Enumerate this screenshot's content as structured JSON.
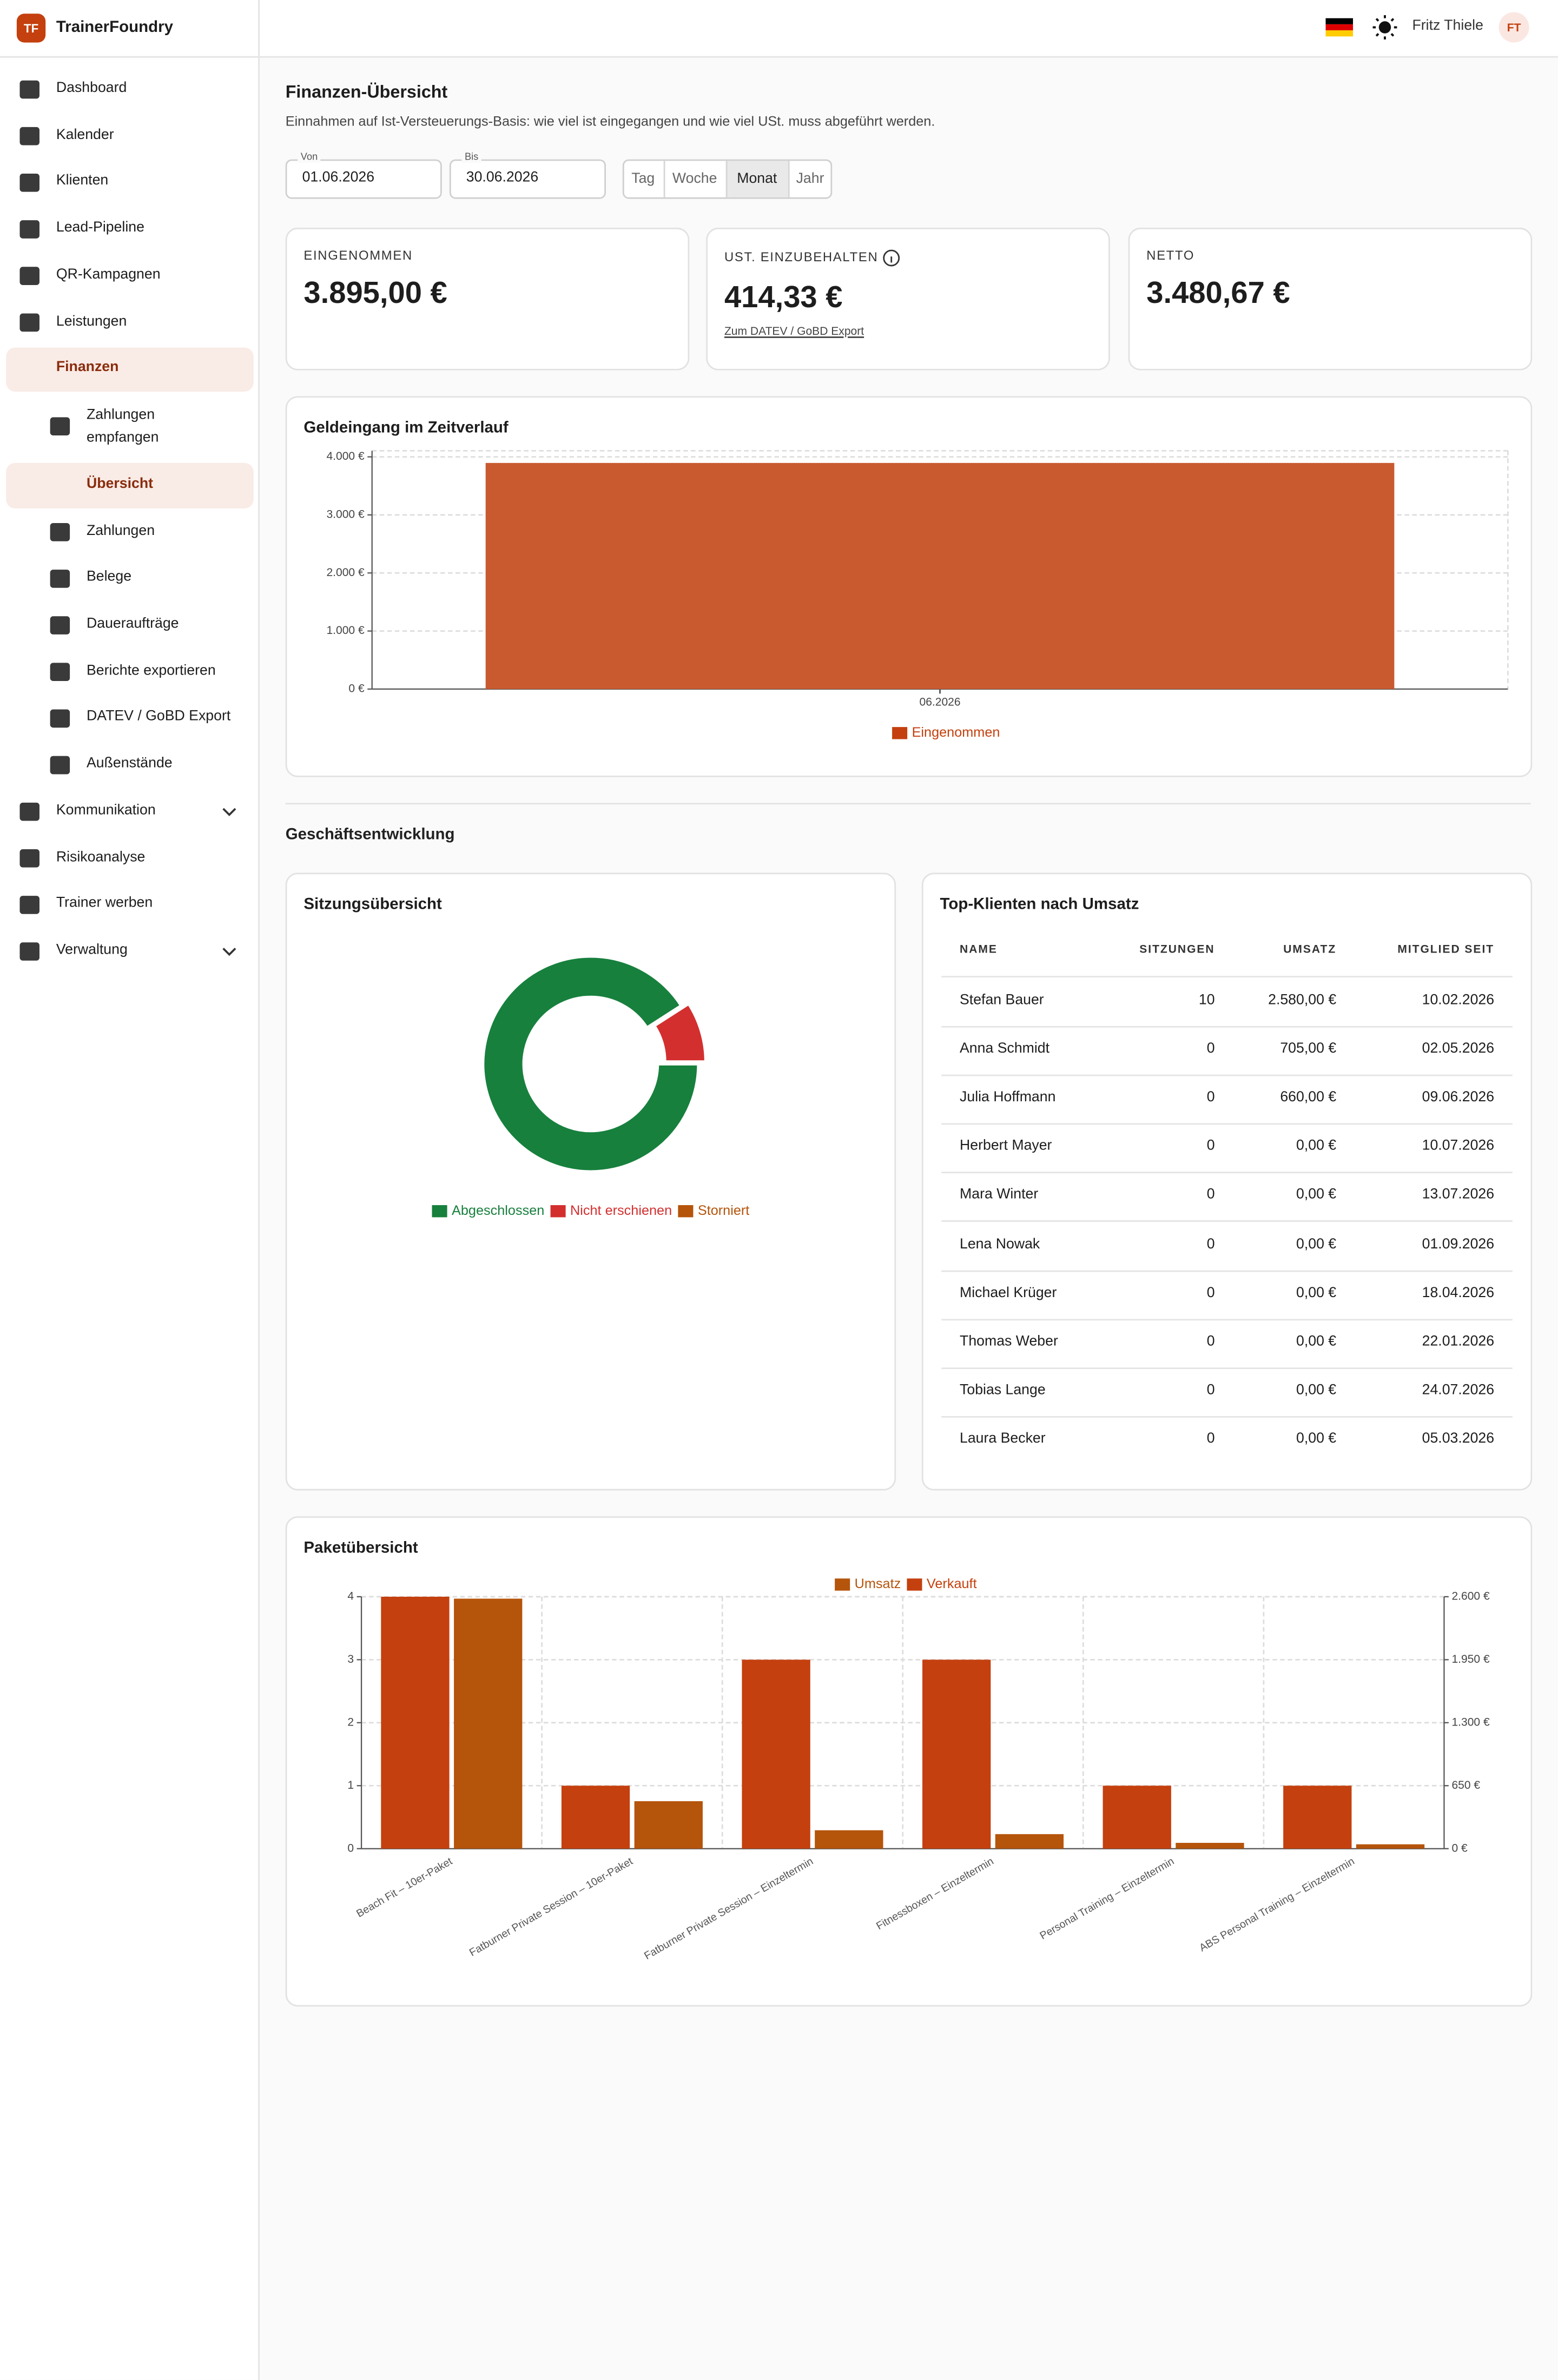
{
  "app": {
    "logo": "TF",
    "name": "TrainerFoundry",
    "user": "Fritz Thiele",
    "initials": "FT"
  },
  "nav": [
    {
      "label": "Dashboard"
    },
    {
      "label": "Kalender"
    },
    {
      "label": "Klienten"
    },
    {
      "label": "Lead-Pipeline"
    },
    {
      "label": "QR-Kampagnen"
    },
    {
      "label": "Leistungen"
    },
    {
      "label": "Finanzen",
      "active": true,
      "children": [
        {
          "label": "Zahlungen empfangen"
        },
        {
          "label": "Übersicht",
          "active": true
        },
        {
          "label": "Zahlungen"
        },
        {
          "label": "Belege"
        },
        {
          "label": "Daueraufträge"
        },
        {
          "label": "Berichte exportieren"
        },
        {
          "label": "DATEV / GoBD Export"
        },
        {
          "label": "Außenstände"
        }
      ]
    },
    {
      "label": "Kommunikation",
      "collapsible": true
    },
    {
      "label": "Risikoanalyse"
    },
    {
      "label": "Trainer werben"
    },
    {
      "label": "Verwaltung",
      "collapsible": true
    }
  ],
  "page": {
    "title": "Finanzen-Übersicht",
    "subtitle": "Einnahmen auf Ist-Versteuerungs-Basis: wie viel ist eingegangen und wie viel USt. muss abgeführt werden.",
    "from_label": "Von",
    "from": "01.06.2026",
    "to_label": "Bis",
    "to": "30.06.2026",
    "periods": [
      "Tag",
      "Woche",
      "Monat",
      "Jahr"
    ],
    "active_period": 2,
    "section": "Geschäftsentwicklung"
  },
  "kpis": [
    {
      "label": "EINGENOMMEN",
      "value": "3.895,00 €"
    },
    {
      "label": "UST. EINZUBEHALTEN",
      "value": "414,33 €",
      "link": "Zum DATEV / GoBD Export"
    },
    {
      "label": "NETTO",
      "value": "3.480,67 €"
    }
  ],
  "table": {
    "title": "Top-Klienten nach Umsatz",
    "columns": [
      "NAME",
      "SITZUNGEN",
      "UMSATZ",
      "MITGLIED SEIT"
    ],
    "rows": [
      [
        "Stefan Bauer",
        "10",
        "2.580,00 €",
        "10.02.2026"
      ],
      [
        "Anna Schmidt",
        "0",
        "705,00 €",
        "02.05.2026"
      ],
      [
        "Julia Hoffmann",
        "0",
        "660,00 €",
        "09.06.2026"
      ],
      [
        "Herbert Mayer",
        "0",
        "0,00 €",
        "10.07.2026"
      ],
      [
        "Mara Winter",
        "0",
        "0,00 €",
        "13.07.2026"
      ],
      [
        "Lena Nowak",
        "0",
        "0,00 €",
        "01.09.2026"
      ],
      [
        "Michael Krüger",
        "0",
        "0,00 €",
        "18.04.2026"
      ],
      [
        "Thomas Weber",
        "0",
        "0,00 €",
        "22.01.2026"
      ],
      [
        "Tobias Lange",
        "0",
        "0,00 €",
        "24.07.2026"
      ],
      [
        "Laura Becker",
        "0",
        "0,00 €",
        "05.03.2026"
      ]
    ]
  },
  "chart_data": [
    {
      "type": "bar",
      "title": "Geldeingang im Zeitverlauf",
      "categories": [
        "06.2026"
      ],
      "series": [
        {
          "name": "Eingenommen",
          "color": "#c95a30",
          "legend_color": "#c4400e",
          "values": [
            3895
          ]
        }
      ],
      "ylim": [
        0,
        4000
      ],
      "yticks": [
        {
          "value": 0,
          "label": "0 €"
        },
        {
          "value": 1000,
          "label": "1.000 €"
        },
        {
          "value": 2000,
          "label": "2.000 €"
        },
        {
          "value": 3000,
          "label": "3.000 €"
        },
        {
          "value": 4000,
          "label": "4.000 €"
        }
      ],
      "grid": true,
      "legend": "bottom"
    },
    {
      "type": "donut",
      "title": "Sitzungsübersicht",
      "categories": [
        "Abgeschlossen",
        "Nicht erschienen",
        "Storniert"
      ],
      "values": [
        10,
        1,
        0
      ],
      "colors": [
        "#17803d",
        "#d32f2f",
        "#b5540b"
      ],
      "legend": "bottom"
    },
    {
      "type": "bar",
      "title": "Paketübersicht",
      "categories": [
        "Beach Fit – 10er-Paket",
        "Fatburner Private Session – 10er-Paket",
        "Fatburner Private Session – Einzeltermin",
        "Fitnessboxen – Einzeltermin",
        "Personal Training – Einzeltermin",
        "ABS Personal Training – Einzeltermin"
      ],
      "series": [
        {
          "name": "Umsatz",
          "color": "#b5540b",
          "axis": "y2",
          "values": [
            2580,
            490,
            190,
            150,
            60,
            45
          ]
        },
        {
          "name": "Verkauft",
          "color": "#c4400e",
          "values": [
            4,
            1,
            3,
            3,
            1,
            1
          ]
        }
      ],
      "ylim": [
        0,
        4
      ],
      "yticks": [
        0,
        1,
        2,
        3,
        4
      ],
      "y2lim": [
        0,
        2600
      ],
      "y2ticks": [
        {
          "value": 0,
          "label": "0 €"
        },
        {
          "value": 650,
          "label": "650 €"
        },
        {
          "value": 1300,
          "label": "1.300 €"
        },
        {
          "value": 1950,
          "label": "1.950 €"
        },
        {
          "value": 2600,
          "label": "2.600 €"
        }
      ],
      "grid": true,
      "legend": "top"
    }
  ]
}
